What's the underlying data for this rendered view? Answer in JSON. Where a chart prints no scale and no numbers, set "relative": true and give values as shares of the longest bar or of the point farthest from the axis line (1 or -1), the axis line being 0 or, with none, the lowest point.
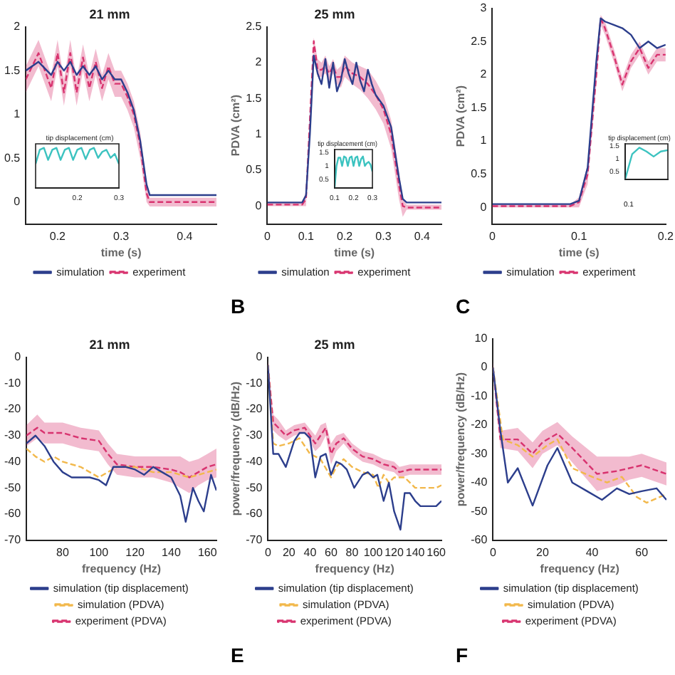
{
  "chart_data": [
    {
      "type": "line",
      "title": "21 mm",
      "xlabel": "time (s)",
      "xlim": [
        0.15,
        0.45
      ],
      "xticks": [
        0.2,
        0.3,
        0.4
      ],
      "ylim": [
        -0.25,
        2
      ],
      "yticks": [
        0,
        0.5,
        1,
        1.5,
        2
      ],
      "legend": "bottom",
      "marker": "none",
      "series": [
        {
          "name": "simulation",
          "color": "#2c3e8c",
          "line_style": "solid",
          "x": [
            0.15,
            0.17,
            0.19,
            0.2,
            0.21,
            0.22,
            0.23,
            0.24,
            0.25,
            0.26,
            0.27,
            0.28,
            0.29,
            0.3,
            0.31,
            0.32,
            0.33,
            0.34,
            0.345,
            0.35,
            0.45
          ],
          "values": [
            1.5,
            1.6,
            1.45,
            1.6,
            1.5,
            1.6,
            1.45,
            1.55,
            1.45,
            1.55,
            1.4,
            1.5,
            1.4,
            1.4,
            1.25,
            1.05,
            0.7,
            0.2,
            0.08,
            0.08,
            0.08
          ]
        },
        {
          "name": "experiment",
          "color": "#d8336f",
          "line_style": "dashed",
          "x": [
            0.15,
            0.17,
            0.19,
            0.2,
            0.21,
            0.22,
            0.23,
            0.24,
            0.25,
            0.26,
            0.27,
            0.28,
            0.29,
            0.3,
            0.31,
            0.32,
            0.33,
            0.34,
            0.345,
            0.35,
            0.45
          ],
          "values": [
            1.4,
            1.7,
            1.3,
            1.7,
            1.25,
            1.7,
            1.25,
            1.65,
            1.3,
            1.6,
            1.3,
            1.55,
            1.35,
            1.35,
            1.2,
            1.0,
            0.65,
            0.1,
            0,
            0,
            0
          ],
          "lower": [
            1.25,
            1.55,
            1.15,
            1.55,
            1.1,
            1.55,
            1.1,
            1.5,
            1.15,
            1.45,
            1.15,
            1.4,
            1.2,
            1.2,
            1.05,
            0.85,
            0.5,
            0,
            -0.05,
            -0.05,
            -0.05
          ],
          "upper": [
            1.55,
            1.85,
            1.45,
            1.85,
            1.4,
            1.85,
            1.4,
            1.8,
            1.45,
            1.75,
            1.45,
            1.7,
            1.5,
            1.5,
            1.35,
            1.15,
            0.8,
            0.2,
            0.05,
            0.05,
            0.05
          ]
        }
      ]
    },
    {
      "type": "line",
      "title": "tip displacement (cm)",
      "xlim": [
        0.1,
        0.3
      ],
      "xticks": [
        0.2,
        0.3
      ],
      "relative": true,
      "tick_labels": "x",
      "marker": "none",
      "series": [
        {
          "color": "#3cc3c0",
          "line_style": "solid",
          "x": [
            0.1,
            0.11,
            0.12,
            0.13,
            0.14,
            0.15,
            0.16,
            0.17,
            0.18,
            0.19,
            0.2,
            0.21,
            0.22,
            0.23,
            0.24,
            0.25,
            0.26,
            0.27,
            0.28,
            0.29,
            0.3
          ],
          "values": [
            0.6,
            0.95,
            1,
            0.7,
            0.95,
            1,
            0.7,
            0.95,
            1,
            0.7,
            0.95,
            1,
            0.72,
            0.95,
            1,
            0.75,
            0.9,
            0.95,
            0.75,
            0.85,
            0.6
          ]
        }
      ]
    },
    {
      "type": "line",
      "title": "25 mm",
      "xlabel": "time (s)",
      "ylabel": "PDVA (cm²)",
      "xlim": [
        0,
        0.45
      ],
      "xticks": [
        0,
        0.1,
        0.2,
        0.3,
        0.4
      ],
      "ylim": [
        -0.25,
        2.5
      ],
      "yticks": [
        0,
        0.5,
        1,
        1.5,
        2,
        2.5
      ],
      "legend": "bottom",
      "marker": "none",
      "annotations": [
        "B"
      ],
      "series": [
        {
          "name": "simulation",
          "color": "#2c3e8c",
          "line_style": "solid",
          "x": [
            0,
            0.09,
            0.1,
            0.11,
            0.12,
            0.13,
            0.14,
            0.15,
            0.16,
            0.17,
            0.18,
            0.19,
            0.2,
            0.21,
            0.22,
            0.23,
            0.24,
            0.25,
            0.26,
            0.27,
            0.28,
            0.3,
            0.32,
            0.34,
            0.35,
            0.36,
            0.45
          ],
          "values": [
            0.05,
            0.05,
            0.15,
            1,
            2.1,
            1.85,
            1.7,
            2.05,
            1.65,
            2,
            1.6,
            1.75,
            2.05,
            1.85,
            1.7,
            2,
            1.75,
            1.6,
            1.9,
            1.7,
            1.55,
            1.4,
            1.1,
            0.4,
            0.1,
            0.05,
            0.05
          ]
        },
        {
          "name": "experiment",
          "color": "#d8336f",
          "line_style": "dashed",
          "x": [
            0,
            0.09,
            0.1,
            0.11,
            0.12,
            0.13,
            0.14,
            0.15,
            0.16,
            0.17,
            0.18,
            0.19,
            0.2,
            0.22,
            0.24,
            0.26,
            0.28,
            0.3,
            0.32,
            0.34,
            0.35,
            0.36,
            0.45
          ],
          "values": [
            0.02,
            0.02,
            0.1,
            1.2,
            2.3,
            1.9,
            1.9,
            1.95,
            1.85,
            1.95,
            1.8,
            1.8,
            1.95,
            1.85,
            1.8,
            1.7,
            1.55,
            1.35,
            1,
            0.3,
            0,
            -0.02,
            -0.02
          ],
          "lower": [
            0,
            0,
            0,
            1.05,
            2.15,
            1.8,
            1.8,
            1.85,
            1.75,
            1.85,
            1.7,
            1.65,
            1.8,
            1.7,
            1.62,
            1.5,
            1.35,
            1.15,
            0.8,
            0.1,
            -0.15,
            -0.05,
            -0.05
          ],
          "upper": [
            0.05,
            0.05,
            0.2,
            1.35,
            2.35,
            2.05,
            2,
            2.1,
            1.95,
            2.05,
            1.9,
            1.95,
            2.1,
            2,
            1.95,
            1.9,
            1.75,
            1.55,
            1.2,
            0.5,
            0.1,
            0.02,
            0.02
          ]
        }
      ]
    },
    {
      "type": "line",
      "title": "tip displacement (cm)",
      "xlim": [
        0.1,
        0.3
      ],
      "xticks": [
        0.1,
        0.2,
        0.3
      ],
      "ylim": [
        0.2,
        1.6
      ],
      "yticks": [
        0.5,
        1,
        1.5
      ],
      "marker": "none",
      "series": [
        {
          "color": "#3cc3c0",
          "line_style": "solid",
          "x": [
            0.1,
            0.11,
            0.12,
            0.13,
            0.14,
            0.15,
            0.16,
            0.17,
            0.18,
            0.19,
            0.2,
            0.21,
            0.22,
            0.23,
            0.24,
            0.25,
            0.26,
            0.27,
            0.28,
            0.29,
            0.3
          ],
          "values": [
            0.2,
            1,
            1.3,
            1.3,
            1,
            1.35,
            1.3,
            1,
            1.3,
            1.35,
            1,
            1.3,
            1.35,
            1,
            1.25,
            1.35,
            1,
            1.1,
            1.15,
            1.05,
            0.8
          ]
        }
      ]
    },
    {
      "type": "line",
      "xlabel": "time (s)",
      "ylabel": "PDVA (cm²)",
      "xlim": [
        0,
        0.2
      ],
      "xticks": [
        0,
        0.1,
        0.2
      ],
      "ylim": [
        -0.25,
        3
      ],
      "yticks": [
        0,
        0.5,
        1,
        1.5,
        2,
        2.5,
        3
      ],
      "legend": "bottom",
      "marker": "none",
      "annotations": [
        "C"
      ],
      "series": [
        {
          "name": "simulation",
          "color": "#2c3e8c",
          "line_style": "solid",
          "x": [
            0,
            0.09,
            0.1,
            0.11,
            0.12,
            0.125,
            0.13,
            0.14,
            0.15,
            0.16,
            0.17,
            0.18,
            0.19,
            0.2
          ],
          "values": [
            0.05,
            0.05,
            0.1,
            0.6,
            2.2,
            2.85,
            2.8,
            2.75,
            2.7,
            2.6,
            2.4,
            2.5,
            2.4,
            2.45
          ]
        },
        {
          "name": "experiment",
          "color": "#d8336f",
          "line_style": "dashed",
          "x": [
            0,
            0.09,
            0.1,
            0.11,
            0.12,
            0.125,
            0.13,
            0.14,
            0.15,
            0.16,
            0.17,
            0.18,
            0.19,
            0.2
          ],
          "values": [
            0.02,
            0.02,
            0.08,
            0.5,
            2,
            2.85,
            2.7,
            2.3,
            1.85,
            2.2,
            2.4,
            2.1,
            2.3,
            2.3
          ],
          "lower": [
            0,
            0,
            0,
            0.35,
            1.85,
            2.75,
            2.6,
            2.2,
            1.75,
            2.1,
            2.3,
            2,
            2.2,
            2.2
          ],
          "upper": [
            0.05,
            0.05,
            0.15,
            0.65,
            2.15,
            2.9,
            2.8,
            2.4,
            1.95,
            2.3,
            2.5,
            2.2,
            2.4,
            2.4
          ]
        }
      ]
    },
    {
      "type": "line",
      "title": "tip displacement (cm)",
      "categories": [
        null,
        null,
        null,
        null,
        null,
        null,
        null
      ],
      "ylim": [
        0.2,
        1.6
      ],
      "yticks": [
        0.5,
        1,
        1.5
      ],
      "marker": "none",
      "annotations": [
        "0.1"
      ],
      "series": [
        {
          "color": "#3cc3c0",
          "line_style": "solid",
          "values": [
            0.2,
            1.2,
            1.45,
            1.3,
            1.1,
            1.3,
            1.35
          ]
        }
      ]
    },
    {
      "type": "line",
      "title": "21 mm",
      "xlabel": "frequency (Hz)",
      "xlim": [
        60,
        165
      ],
      "xticks": [
        80,
        100,
        120,
        140,
        160
      ],
      "ylim": [
        -70,
        0
      ],
      "yticks": [
        -70,
        -60,
        -50,
        -40,
        -30,
        -20,
        -10,
        0
      ],
      "legend": "bottom",
      "marker": "none",
      "series": [
        {
          "name": "simulation (tip displacement)",
          "color": "#2c3e8c",
          "line_style": "solid",
          "x": [
            60,
            65,
            70,
            75,
            80,
            85,
            90,
            95,
            100,
            104,
            108,
            115,
            120,
            125,
            130,
            135,
            140,
            145,
            148,
            152,
            155,
            158,
            162,
            165
          ],
          "values": [
            -33,
            -30,
            -34,
            -40,
            -44,
            -46,
            -46,
            -46,
            -47,
            -49,
            -42,
            -42,
            -43,
            -45,
            -42,
            -44,
            -46,
            -53,
            -63,
            -50,
            -55,
            -59,
            -45,
            -51
          ]
        },
        {
          "name": "simulation (PDVA)",
          "color": "#f2b84b",
          "line_style": "dashed",
          "x": [
            60,
            65,
            70,
            75,
            80,
            90,
            100,
            110,
            120,
            130,
            140,
            150,
            160,
            165
          ],
          "values": [
            -35,
            -38,
            -40,
            -38,
            -40,
            -42,
            -46,
            -42,
            -42,
            -44,
            -44,
            -46,
            -44,
            -43
          ]
        },
        {
          "name": "experiment (PDVA)",
          "color": "#d8336f",
          "line_style": "dashed",
          "x": [
            60,
            66,
            70,
            80,
            90,
            100,
            105,
            110,
            120,
            130,
            140,
            145,
            150,
            155,
            160,
            165
          ],
          "values": [
            -30,
            -27,
            -29,
            -29,
            -31,
            -32,
            -37,
            -41,
            -42,
            -42,
            -43,
            -44,
            -46,
            -44,
            -42,
            -41
          ],
          "lower": [
            -34,
            -31,
            -33,
            -33,
            -35,
            -36,
            -41,
            -45,
            -46,
            -46,
            -48,
            -50,
            -52,
            -49,
            -47,
            -46
          ],
          "upper": [
            -26,
            -22,
            -25,
            -25,
            -27,
            -28,
            -33,
            -37,
            -38,
            -38,
            -38,
            -38,
            -40,
            -39,
            -37,
            -35
          ]
        }
      ]
    },
    {
      "type": "line",
      "title": "25 mm",
      "xlabel": "frequency (Hz)",
      "ylabel": "power/frequency (dB/Hz)",
      "xlim": [
        0,
        165
      ],
      "xticks": [
        0,
        20,
        40,
        60,
        80,
        100,
        120,
        140,
        160
      ],
      "ylim": [
        -70,
        0
      ],
      "yticks": [
        -70,
        -60,
        -50,
        -40,
        -30,
        -20,
        -10,
        0
      ],
      "legend": "bottom",
      "marker": "none",
      "annotations": [
        "E"
      ],
      "series": [
        {
          "name": "simulation (tip displacement)",
          "color": "#2c3e8c",
          "line_style": "solid",
          "x": [
            0,
            5,
            10,
            17,
            25,
            30,
            35,
            40,
            45,
            50,
            55,
            60,
            65,
            70,
            75,
            82,
            90,
            95,
            100,
            104,
            110,
            115,
            120,
            126,
            130,
            135,
            140,
            145,
            150,
            160,
            165
          ],
          "values": [
            -3,
            -37,
            -37,
            -42,
            -32,
            -29,
            -29,
            -31,
            -46,
            -38,
            -37,
            -45,
            -40,
            -41,
            -43,
            -50,
            -45,
            -44,
            -46,
            -45,
            -55,
            -48,
            -59,
            -66,
            -52,
            -52,
            -55,
            -57,
            -57,
            -57,
            -55
          ]
        },
        {
          "name": "simulation (PDVA)",
          "color": "#f2b84b",
          "line_style": "dashed",
          "x": [
            0,
            5,
            10,
            20,
            30,
            40,
            50,
            60,
            65,
            72,
            80,
            90,
            100,
            105,
            110,
            115,
            120,
            130,
            140,
            150,
            160,
            165
          ],
          "values": [
            -3,
            -33,
            -34,
            -33,
            -31,
            -37,
            -39,
            -46,
            -42,
            -39,
            -42,
            -44,
            -45,
            -50,
            -45,
            -48,
            -46,
            -46,
            -50,
            -50,
            -50,
            -49
          ]
        },
        {
          "name": "experiment (PDVA)",
          "color": "#d8336f",
          "line_style": "dashed",
          "x": [
            0,
            5,
            10,
            17,
            25,
            35,
            45,
            50,
            55,
            60,
            65,
            72,
            80,
            90,
            100,
            110,
            120,
            125,
            135,
            145,
            150,
            160,
            165
          ],
          "values": [
            -3,
            -25,
            -27,
            -30,
            -28,
            -27,
            -33,
            -30,
            -27,
            -37,
            -33,
            -31,
            -35,
            -38,
            -39,
            -41,
            -42,
            -44,
            -43,
            -43,
            -43,
            -43,
            -43
          ],
          "lower": [
            -5,
            -28,
            -30,
            -32,
            -30,
            -29,
            -36,
            -34,
            -30,
            -41,
            -36,
            -33,
            -37,
            -40,
            -41,
            -43,
            -44,
            -46,
            -45,
            -45,
            -45,
            -45,
            -45
          ],
          "upper": [
            -1,
            -22,
            -24,
            -28,
            -26,
            -25,
            -30,
            -26,
            -25,
            -33,
            -30,
            -29,
            -33,
            -36,
            -37,
            -39,
            -40,
            -42,
            -41,
            -41,
            -41,
            -41,
            -41
          ]
        }
      ]
    },
    {
      "type": "line",
      "xlabel": "frequency (Hz)",
      "ylabel": "power/frequency (dB/Hz)",
      "xlim": [
        0,
        70
      ],
      "xticks": [
        0,
        20,
        40,
        60
      ],
      "ylim": [
        -60,
        10
      ],
      "yticks": [
        -60,
        -50,
        -40,
        -30,
        -20,
        -10,
        0,
        10
      ],
      "legend": "bottom",
      "marker": "none",
      "annotations": [
        "F"
      ],
      "series": [
        {
          "name": "simulation (tip displacement)",
          "color": "#2c3e8c",
          "line_style": "solid",
          "x": [
            0,
            3,
            6,
            10,
            16,
            22,
            26,
            32,
            38,
            44,
            50,
            55,
            60,
            66,
            70
          ],
          "values": [
            0,
            -22,
            -40,
            -35,
            -48,
            -34,
            -28,
            -40,
            -43,
            -46,
            -42,
            -44,
            -43,
            -42,
            -46
          ]
        },
        {
          "name": "simulation (PDVA)",
          "color": "#f2b84b",
          "line_style": "dashed",
          "x": [
            0,
            4,
            10,
            16,
            22,
            26,
            32,
            40,
            46,
            52,
            58,
            62,
            70
          ],
          "values": [
            0,
            -25,
            -27,
            -31,
            -27,
            -25,
            -35,
            -38,
            -40,
            -38,
            -45,
            -47,
            -44
          ]
        },
        {
          "name": "experiment (PDVA)",
          "color": "#d8336f",
          "line_style": "dashed",
          "x": [
            0,
            3,
            10,
            16,
            20,
            26,
            32,
            42,
            50,
            55,
            60,
            70
          ],
          "values": [
            0,
            -25,
            -25,
            -30,
            -26,
            -23,
            -28,
            -37,
            -36,
            -35,
            -34,
            -37
          ],
          "lower": [
            -2,
            -28,
            -29,
            -35,
            -30,
            -27,
            -33,
            -43,
            -41,
            -39,
            -38,
            -41
          ],
          "upper": [
            2,
            -22,
            -21,
            -26,
            -22,
            -19,
            -24,
            -31,
            -31,
            -31,
            -30,
            -33
          ]
        }
      ]
    }
  ]
}
